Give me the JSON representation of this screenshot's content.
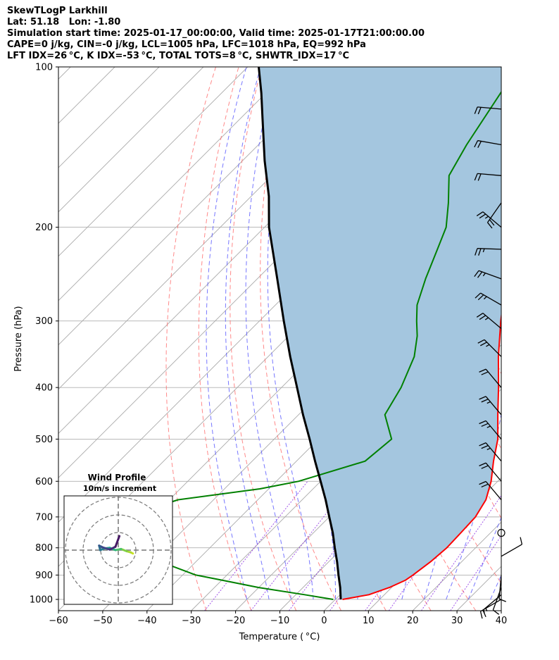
{
  "header": {
    "line1": "SkewTLogP Larkhill",
    "line2": "Lat: 51.18   Lon: -1.80",
    "line3": "Simulation start time: 2025-01-17_00:00:00, Valid time: 2025-01-17T21:00:00.00",
    "line4": "CAPE=0 j/kg, CIN=-0 j/kg, LCL=1005 hPa, LFC=1018 hPa, EQ=992 hPa",
    "line5": "LFT IDX=26 °C, K IDX=-53 °C, TOTAL TOTS=8 °C, SHWTR_IDX=17 °C"
  },
  "colors": {
    "temperature": "#ff0000",
    "dewpoint": "#008000",
    "parcel": "#000000",
    "shade": "#a4c6df",
    "dry_adiabat": "#ff6b6b",
    "moist_adiabat": "#5555ff",
    "mixing_ratio": "#8a2be2",
    "isotherm": "#aaaaaa"
  },
  "chart_data": [
    {
      "type": "line",
      "subtype": "skew-t log-p",
      "xlabel": "Temperature ( °C)",
      "ylabel": "Pressure (hPa)",
      "xlim": [
        -60,
        40
      ],
      "ylim": [
        1050,
        100
      ],
      "y_scale": "log",
      "x_ticks": [
        "−60",
        "−50",
        "−40",
        "−30",
        "−20",
        "−10",
        "0",
        "10",
        "20",
        "30",
        "40"
      ],
      "y_ticks": [
        "100",
        "200",
        "300",
        "400",
        "500",
        "600",
        "700",
        "800",
        "900",
        "1000"
      ],
      "grid": true,
      "series": [
        {
          "key": "temperature",
          "p": [
            1000,
            980,
            950,
            920,
            900,
            850,
            800,
            750,
            700,
            650,
            600,
            550,
            500,
            450,
            400,
            350,
            300,
            250,
            220,
            200,
            180,
            160,
            140,
            125,
            112,
            100
          ],
          "values": [
            1.6,
            6.5,
            9.5,
            11.5,
            12.0,
            13.0,
            13.5,
            13.3,
            13.0,
            11.5,
            8.5,
            4.5,
            0.5,
            -5.0,
            -11.0,
            -18.0,
            -25.5,
            -33.8,
            -39.5,
            -44.0,
            -47.5,
            -52.0,
            -56.5,
            -58.5,
            -61.0,
            -64.5
          ]
        },
        {
          "key": "dewpoint",
          "p": [
            1000,
            980,
            950,
            920,
            900,
            850,
            800,
            780,
            750,
            700,
            650,
            620,
            600,
            550,
            500,
            450,
            400,
            350,
            320,
            300,
            280,
            250,
            220,
            200,
            180,
            160,
            140,
            100
          ],
          "values": [
            -0.5,
            -8.0,
            -20.0,
            -30.0,
            -37.0,
            -48.0,
            -55.0,
            -59.0,
            -63.5,
            -66.0,
            -58.0,
            -42.0,
            -35.0,
            -24.5,
            -23.5,
            -30.5,
            -33.0,
            -37.0,
            -41.0,
            -44.5,
            -48.0,
            -52.0,
            -56.0,
            -59.0,
            -64.0,
            -70.0,
            -73.0,
            -79.0
          ]
        },
        {
          "key": "parcel",
          "p": [
            1000,
            950,
            900,
            850,
            800,
            750,
            700,
            650,
            600,
            550,
            500,
            450,
            400,
            350,
            300,
            250,
            200,
            175,
            150,
            125,
            112,
            100
          ],
          "values": [
            1.2,
            -1.6,
            -4.8,
            -8.1,
            -11.8,
            -15.6,
            -20.0,
            -24.7,
            -30.0,
            -35.8,
            -42.0,
            -49.0,
            -56.5,
            -65.0,
            -74.5,
            -85.5,
            -99.0,
            -106.0,
            -115.0,
            -125.0,
            -131.0,
            -137.5
          ]
        }
      ],
      "wind_barbs": [
        {
          "p": 120,
          "dir": 275,
          "kt": 20
        },
        {
          "p": 140,
          "dir": 280,
          "kt": 20
        },
        {
          "p": 160,
          "dir": 275,
          "kt": 20
        },
        {
          "p": 180,
          "dir": 215,
          "kt": 20
        },
        {
          "p": 200,
          "dir": 310,
          "kt": 25
        },
        {
          "p": 220,
          "dir": 272,
          "kt": 25
        },
        {
          "p": 250,
          "dir": 290,
          "kt": 25
        },
        {
          "p": 280,
          "dir": 300,
          "kt": 25
        },
        {
          "p": 310,
          "dir": 310,
          "kt": 25
        },
        {
          "p": 350,
          "dir": 315,
          "kt": 25
        },
        {
          "p": 400,
          "dir": 320,
          "kt": 20
        },
        {
          "p": 450,
          "dir": 320,
          "kt": 25
        },
        {
          "p": 500,
          "dir": 320,
          "kt": 25
        },
        {
          "p": 550,
          "dir": 320,
          "kt": 25
        },
        {
          "p": 600,
          "dir": 320,
          "kt": 20
        },
        {
          "p": 650,
          "dir": 320,
          "kt": 20
        },
        {
          "p": 750,
          "dir": 0,
          "kt": 0
        },
        {
          "p": 830,
          "dir": 60,
          "kt": 10
        },
        {
          "p": 900,
          "dir": 185,
          "kt": 10
        },
        {
          "p": 950,
          "dir": 200,
          "kt": 10
        },
        {
          "p": 980,
          "dir": 230,
          "kt": 15
        },
        {
          "p": 1000,
          "dir": 240,
          "kt": 15
        }
      ]
    },
    {
      "type": "line",
      "subtype": "hodograph",
      "title": "Wind Profile",
      "subtitle": "10m/s increment",
      "points_u": [
        2.6,
        2.2,
        1.5,
        0.5,
        -0.5,
        -1.5,
        -2.5,
        -3.2,
        -3.4,
        -2.8,
        -1.5,
        -0.5,
        0.2
      ],
      "points_v": [
        -0.6,
        -0.4,
        -0.2,
        0.2,
        0.0,
        0.4,
        0.3,
        0.0,
        0.8,
        0.5,
        0.1,
        0.6,
        2.5
      ]
    }
  ]
}
